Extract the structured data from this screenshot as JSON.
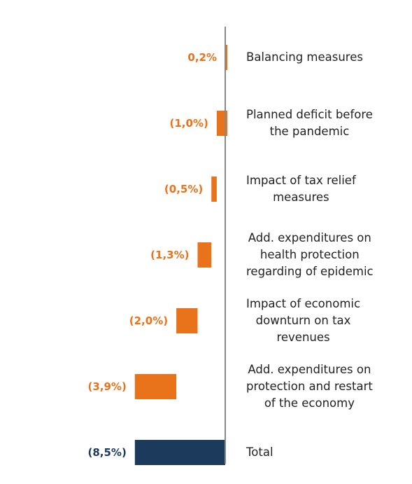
{
  "chart_data": {
    "type": "waterfall",
    "orientation": "horizontal",
    "categories": [
      "Balancing measures",
      "Planned deficit before\nthe pandemic",
      "Impact of tax relief\nmeasures",
      "Add. expenditures on\nhealth protection\nregarding of epidemic",
      "Impact of economic\ndownturn on tax\nrevenues",
      "Add. expenditures on\nprotection and restart\nof the economy",
      "Total"
    ],
    "values": [
      0.2,
      -1.0,
      -0.5,
      -1.3,
      -2.0,
      -3.9,
      -8.5
    ],
    "value_labels": [
      "0,2%",
      "(1,0%)",
      "(0,5%)",
      "(1,3%)",
      "(2,0%)",
      "(3,9%)",
      "(8,5%)"
    ],
    "is_total": [
      false,
      false,
      false,
      false,
      false,
      false,
      true
    ],
    "color": "#e8731a",
    "total_color": "#1b3a5c",
    "xlim": [
      -9.5,
      0.5
    ]
  }
}
